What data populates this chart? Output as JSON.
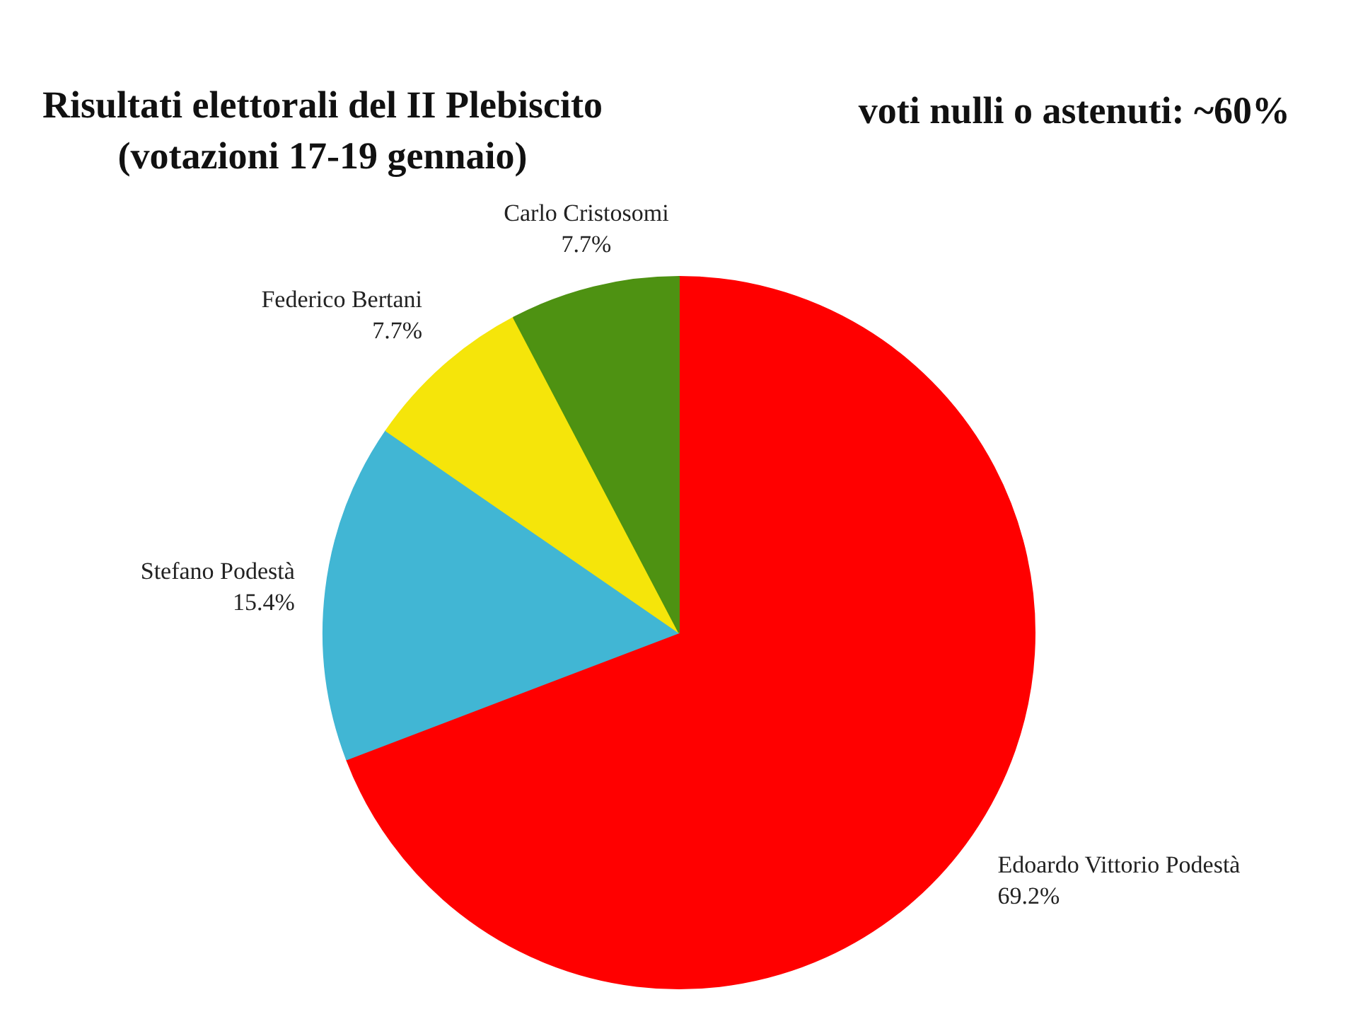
{
  "chart_data": {
    "type": "pie",
    "title": "Risultati elettorali del II Plebiscito",
    "subtitle": "(votazioni 17-19 gennaio)",
    "annotations": [
      "voti nulli o astenuti: ~60%"
    ],
    "categories": [
      "Edoardo Vittorio Podestà",
      "Stefano Podestà",
      "Federico Bertani",
      "Carlo Cristosomi"
    ],
    "values": [
      69.2,
      15.4,
      7.7,
      7.7
    ],
    "value_labels": [
      "69.2%",
      "15.4%",
      "7.7%",
      "7.7%"
    ],
    "colors": [
      "#ff0000",
      "#41b6d4",
      "#f5e50a",
      "#4e9212"
    ],
    "legend": false
  }
}
